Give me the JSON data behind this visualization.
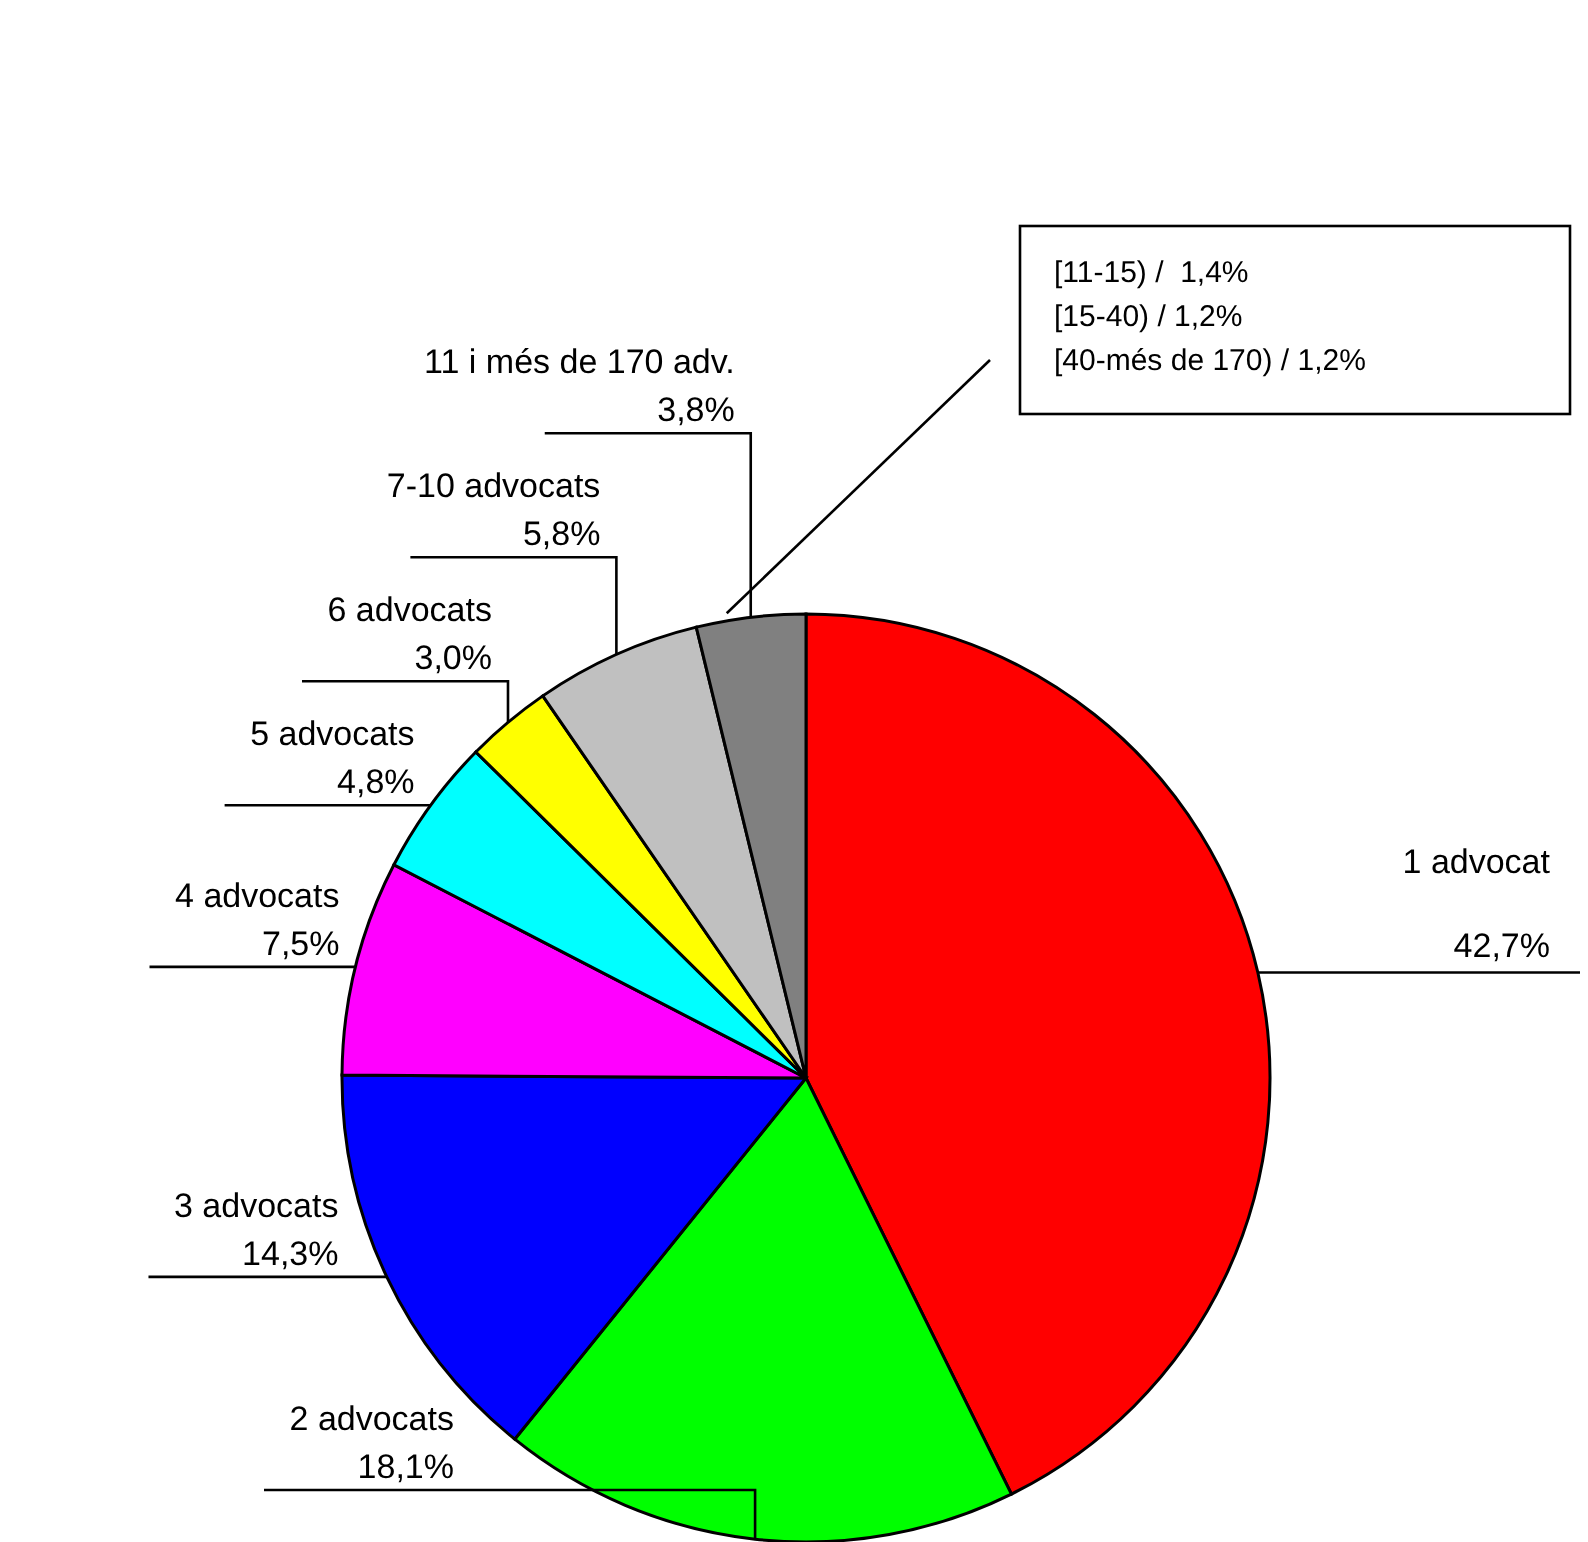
{
  "chart_data": {
    "type": "pie",
    "categories": [
      "1 advocat",
      "2 advocats",
      "3 advocats",
      "4 advocats",
      "5 advocats",
      "6 advocats",
      "7-10 advocats",
      "11 i més de 170 adv."
    ],
    "values": [
      42.7,
      18.1,
      14.3,
      7.5,
      4.8,
      3.0,
      5.8,
      3.8
    ],
    "colors": [
      "#ff0000",
      "#00ff00",
      "#0000ff",
      "#ff00ff",
      "#00ffff",
      "#ffff00",
      "#c0c0c0",
      "#808080"
    ],
    "value_labels": [
      "42,7%",
      "18,1%",
      "14,3%",
      "7,5%",
      "4,8%",
      "3,0%",
      "5,8%",
      "3,8%"
    ],
    "annotations": [
      "[11-15) /  1,4%",
      "[15-40) / 1,2%",
      "[40-més de 170) / 1,2%"
    ]
  }
}
